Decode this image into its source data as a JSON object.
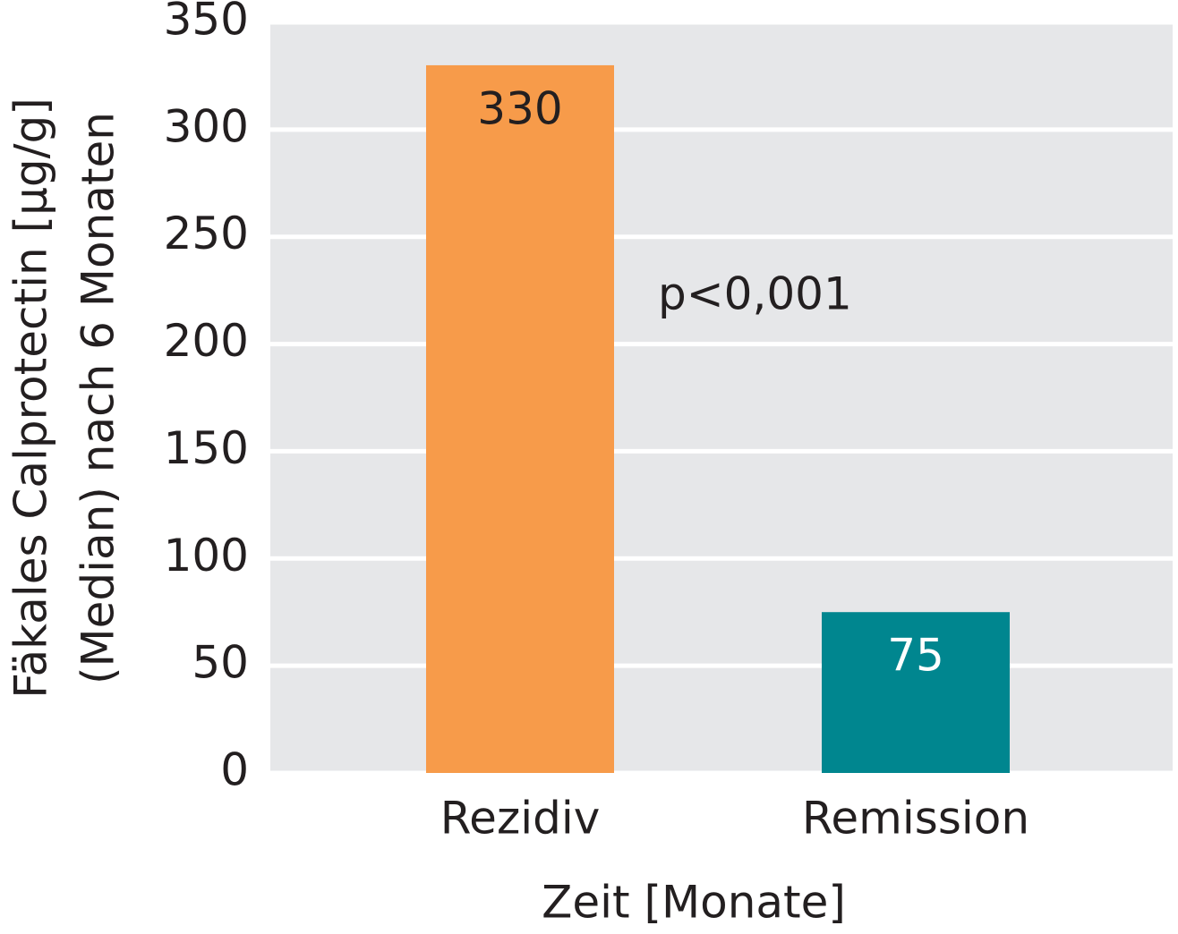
{
  "chart_data": {
    "type": "bar",
    "categories": [
      "Rezidiv",
      "Remission"
    ],
    "values": [
      330,
      75
    ],
    "colors": [
      "#f79b4a",
      "#00868f"
    ],
    "label_colors": [
      "#231f20",
      "#ffffff"
    ],
    "ylim": [
      0,
      350
    ],
    "yticks": [
      0,
      50,
      100,
      150,
      200,
      250,
      300,
      350
    ],
    "grid": true,
    "ylabel": [
      "Fäkales Calprotectin [µg/g]",
      "(Median) nach 6 Monaten"
    ],
    "xlabel": "Zeit [Monate]",
    "annotation": "p<0,001"
  }
}
